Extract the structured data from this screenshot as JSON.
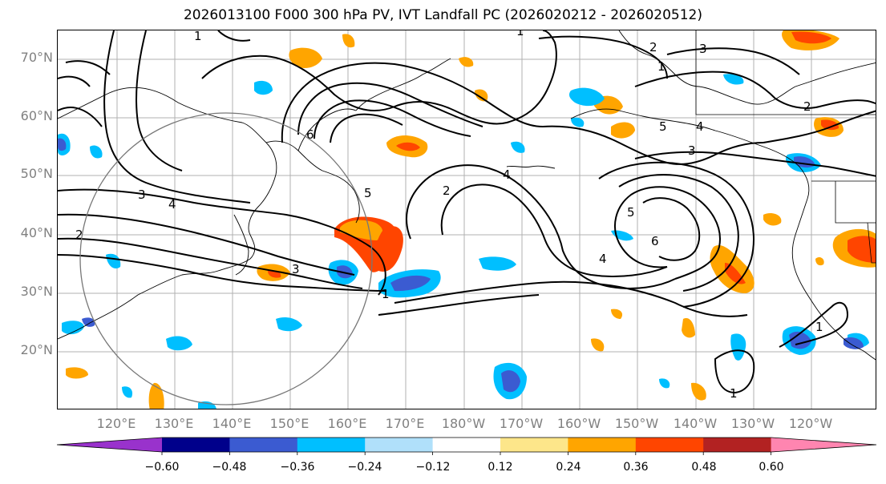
{
  "title": "2026013100 F000 300 hPa PV, IVT Landfall PC (2026020212 - 2026020512)",
  "map": {
    "lat_labels": [
      "70°N",
      "60°N",
      "50°N",
      "40°N",
      "30°N",
      "20°N"
    ],
    "lon_labels": [
      "120°E",
      "130°E",
      "140°E",
      "150°E",
      "160°E",
      "170°E",
      "180°W",
      "170°W",
      "160°W",
      "150°W",
      "140°W",
      "130°W",
      "120°W"
    ],
    "contour_labels": [
      "1",
      "2",
      "3",
      "4",
      "5",
      "6"
    ]
  },
  "colorbar": {
    "ticks": [
      "−0.60",
      "−0.48",
      "−0.36",
      "−0.24",
      "−0.12",
      "0.12",
      "0.24",
      "0.36",
      "0.48",
      "0.60"
    ],
    "colors": [
      "#9932cc",
      "#00008b",
      "#3b5bd1",
      "#00bfff",
      "#b0e0fa",
      "#ffffff",
      "#fde68a",
      "#ffa500",
      "#ff4500",
      "#b22222",
      "#ff85b0"
    ]
  }
}
